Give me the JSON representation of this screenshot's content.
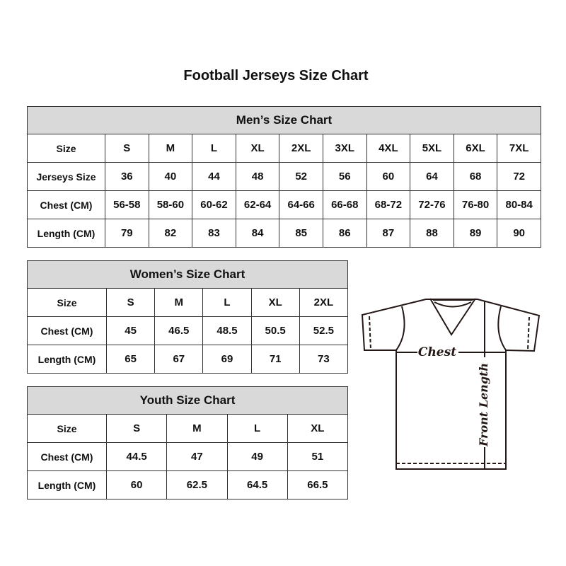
{
  "title": "Football Jerseys Size Chart",
  "men": {
    "title": "Men’s Size Chart",
    "rows": [
      {
        "label": "Size",
        "values": [
          "S",
          "M",
          "L",
          "XL",
          "2XL",
          "3XL",
          "4XL",
          "5XL",
          "6XL",
          "7XL"
        ]
      },
      {
        "label": "Jerseys Size",
        "values": [
          "36",
          "40",
          "44",
          "48",
          "52",
          "56",
          "60",
          "64",
          "68",
          "72"
        ]
      },
      {
        "label": "Chest (CM)",
        "values": [
          "56-58",
          "58-60",
          "60-62",
          "62-64",
          "64-66",
          "66-68",
          "68-72",
          "72-76",
          "76-80",
          "80-84"
        ]
      },
      {
        "label": "Length (CM)",
        "values": [
          "79",
          "82",
          "83",
          "84",
          "85",
          "86",
          "87",
          "88",
          "89",
          "90"
        ]
      }
    ]
  },
  "women": {
    "title": "Women’s Size Chart",
    "rows": [
      {
        "label": "Size",
        "values": [
          "S",
          "M",
          "L",
          "XL",
          "2XL"
        ]
      },
      {
        "label": "Chest (CM)",
        "values": [
          "45",
          "46.5",
          "48.5",
          "50.5",
          "52.5"
        ]
      },
      {
        "label": "Length (CM)",
        "values": [
          "65",
          "67",
          "69",
          "71",
          "73"
        ]
      }
    ]
  },
  "youth": {
    "title": "Youth Size Chart",
    "rows": [
      {
        "label": "Size",
        "values": [
          "S",
          "M",
          "L",
          "XL"
        ]
      },
      {
        "label": "Chest (CM)",
        "values": [
          "44.5",
          "47",
          "49",
          "51"
        ]
      },
      {
        "label": "Length (CM)",
        "values": [
          "60",
          "62.5",
          "64.5",
          "66.5"
        ]
      }
    ]
  },
  "diagram": {
    "chest_label": "Chest",
    "length_label": "Front Length"
  }
}
